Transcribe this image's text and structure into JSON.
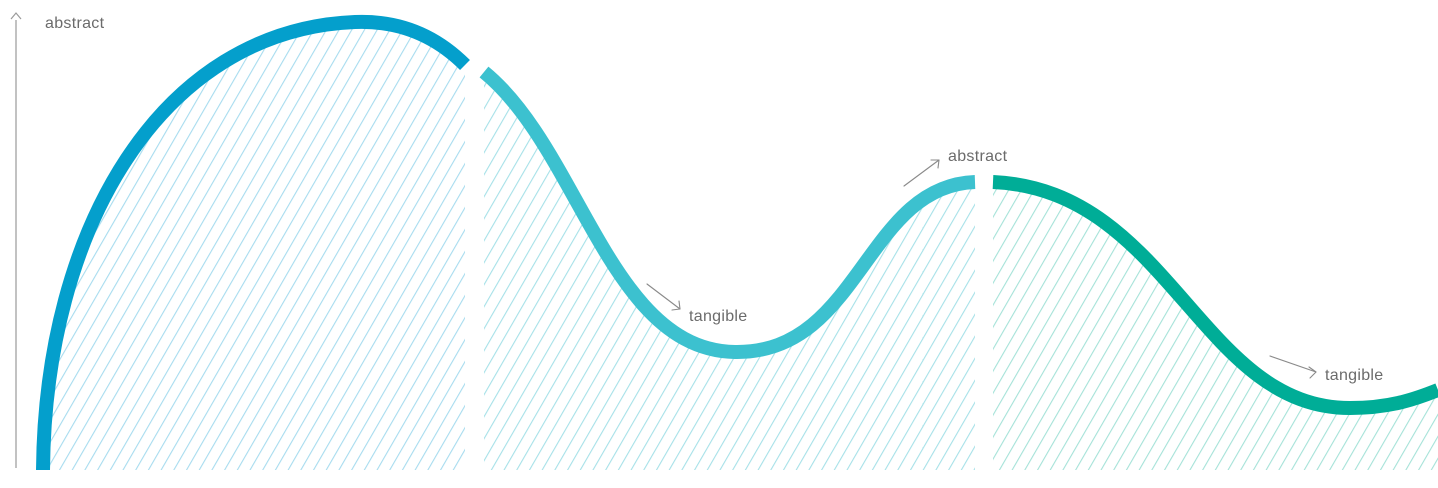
{
  "axis": {
    "top_label": "abstract"
  },
  "segments": [
    {
      "id": "segment-1",
      "color": "#049fcc",
      "hatch": "#a7dcef"
    },
    {
      "id": "segment-2",
      "color": "#3cc1cf",
      "hatch": "#a6e1e8"
    },
    {
      "id": "segment-3",
      "color": "#00ad97",
      "hatch": "#a5e2d8"
    }
  ],
  "annotations": {
    "seg2_tangible": "tangible",
    "seg2_abstract": "abstract",
    "seg3_tangible": "tangible"
  }
}
